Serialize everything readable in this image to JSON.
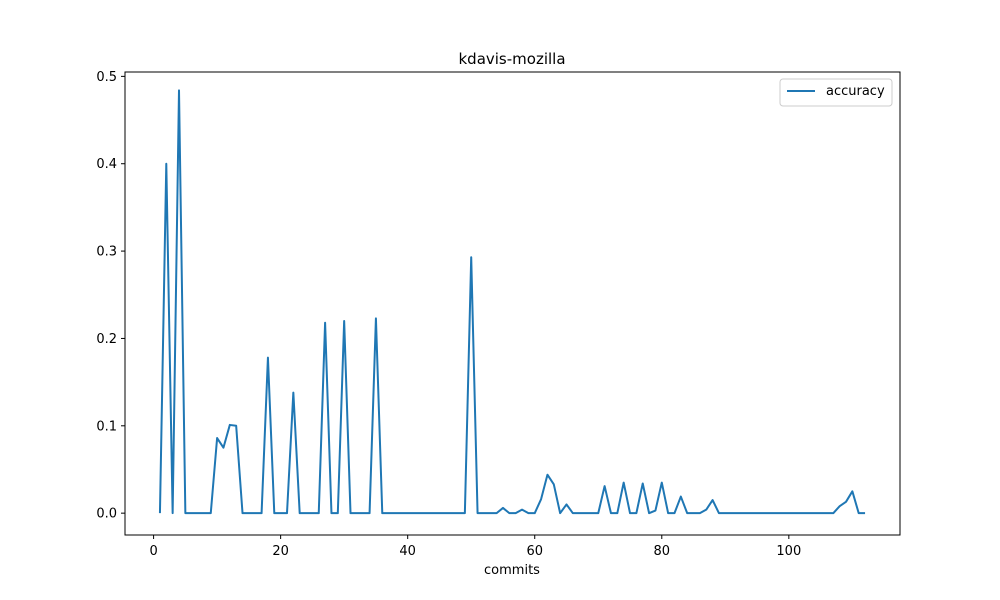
{
  "chart_data": {
    "type": "line",
    "title": "kdavis-mozilla",
    "xlabel": "commits",
    "ylabel": "",
    "xlim": [
      -4.5,
      117.5
    ],
    "ylim": [
      -0.025,
      0.505
    ],
    "xticks": [
      0,
      20,
      40,
      60,
      80,
      100
    ],
    "yticks": [
      0.0,
      0.1,
      0.2,
      0.3,
      0.4,
      0.5
    ],
    "xtick_labels": [
      "0",
      "20",
      "40",
      "60",
      "80",
      "100"
    ],
    "ytick_labels": [
      "0.0",
      "0.1",
      "0.2",
      "0.3",
      "0.4",
      "0.5"
    ],
    "legend_position": "top-right",
    "grid": false,
    "series": [
      {
        "name": "accuracy",
        "color": "#1f77b4",
        "x": [
          1,
          2,
          3,
          4,
          5,
          6,
          7,
          8,
          9,
          10,
          11,
          12,
          13,
          14,
          15,
          16,
          17,
          18,
          19,
          20,
          21,
          22,
          23,
          24,
          25,
          26,
          27,
          28,
          29,
          30,
          31,
          32,
          33,
          34,
          35,
          36,
          37,
          38,
          39,
          40,
          41,
          42,
          43,
          44,
          45,
          46,
          47,
          48,
          49,
          50,
          51,
          52,
          53,
          54,
          55,
          56,
          57,
          58,
          59,
          60,
          61,
          62,
          63,
          64,
          65,
          66,
          67,
          68,
          69,
          70,
          71,
          72,
          73,
          74,
          75,
          76,
          77,
          78,
          79,
          80,
          81,
          82,
          83,
          84,
          85,
          86,
          87,
          88,
          89,
          90,
          91,
          92,
          93,
          94,
          95,
          96,
          97,
          98,
          99,
          100,
          101,
          102,
          103,
          104,
          105,
          106,
          107,
          108,
          109,
          110,
          111,
          112
        ],
        "y": [
          0,
          0.4,
          0,
          0.484,
          0,
          0,
          0,
          0,
          0,
          0.086,
          0.075,
          0.101,
          0.1,
          0,
          0,
          0,
          0,
          0.178,
          0,
          0,
          0,
          0.138,
          0,
          0,
          0,
          0,
          0.218,
          0,
          0,
          0.22,
          0,
          0,
          0,
          0,
          0.223,
          0,
          0,
          0,
          0,
          0,
          0,
          0,
          0,
          0,
          0,
          0,
          0,
          0,
          0,
          0.293,
          0,
          0,
          0,
          0,
          0.006,
          0,
          0,
          0.004,
          0,
          0,
          0.016,
          0.044,
          0.033,
          0,
          0.01,
          0,
          0,
          0,
          0,
          0,
          0.031,
          0,
          0,
          0.035,
          0,
          0,
          0.034,
          0,
          0.003,
          0.035,
          0,
          0,
          0.019,
          0,
          0,
          0,
          0.004,
          0.015,
          0,
          0,
          0,
          0,
          0,
          0,
          0,
          0,
          0,
          0,
          0,
          0,
          0,
          0,
          0,
          0,
          0,
          0,
          0,
          0.008,
          0.013,
          0.025,
          0,
          0
        ]
      }
    ]
  }
}
